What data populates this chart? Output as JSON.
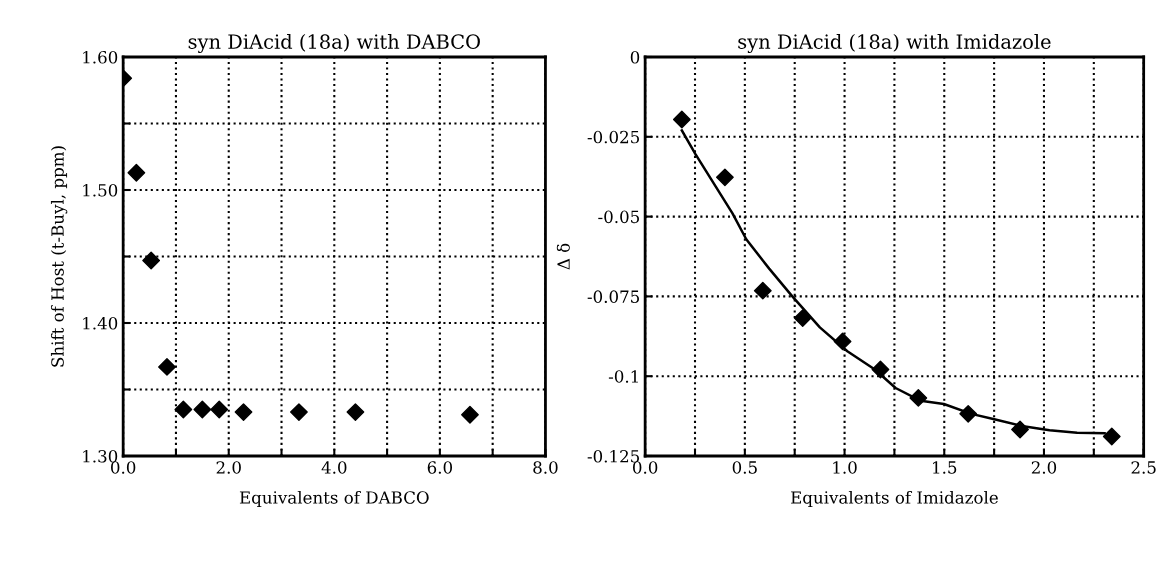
{
  "chart_data": [
    {
      "type": "scatter",
      "title": "syn DiAcid (18a) with DABCO",
      "xlabel": "Equivalents of DABCO",
      "ylabel": "Shift of Host (t-Buyl, ppm)",
      "marker": "diamond",
      "grid": true,
      "series": [
        {
          "color": "#000000",
          "x": [
            0,
            0.25,
            0.53,
            0.83,
            1.14,
            1.5,
            1.82,
            2.28,
            3.33,
            4.4,
            6.57
          ],
          "values": [
            1.584,
            1.513,
            1.447,
            1.367,
            1.335,
            1.335,
            1.335,
            1.333,
            1.333,
            1.333,
            1.331
          ]
        }
      ],
      "xlim": [
        0,
        8
      ],
      "xticks": [
        {
          "value": 0,
          "label": "0.0"
        },
        {
          "value": 1,
          "label": null
        },
        {
          "value": 2,
          "label": "2.0"
        },
        {
          "value": 3,
          "label": null
        },
        {
          "value": 4,
          "label": "4.0"
        },
        {
          "value": 5,
          "label": null
        },
        {
          "value": 6,
          "label": "6.0"
        },
        {
          "value": 7,
          "label": null
        },
        {
          "value": 8,
          "label": "8.0"
        }
      ],
      "ylim": [
        1.3,
        1.6
      ],
      "yticks": [
        {
          "value": 1.3,
          "label": "1.30"
        },
        {
          "value": 1.35,
          "label": null
        },
        {
          "value": 1.4,
          "label": "1.40"
        },
        {
          "value": 1.45,
          "label": null
        },
        {
          "value": 1.5,
          "label": "1.50"
        },
        {
          "value": 1.55,
          "label": null
        },
        {
          "value": 1.6,
          "label": "1.60"
        }
      ]
    },
    {
      "type": "scatter",
      "title": "syn DiAcid (18a) with Imidazole",
      "xlabel": "Equivalents of Imidazole",
      "ylabel": "Δ δ",
      "marker": "diamond",
      "grid": true,
      "series": [
        {
          "color": "#000000",
          "x": [
            0.184,
            0.4,
            0.59,
            0.79,
            0.99,
            1.18,
            1.37,
            1.62,
            1.88,
            2.34
          ],
          "values": [
            -0.0196,
            -0.0377,
            -0.0732,
            -0.0818,
            -0.0891,
            -0.0979,
            -0.1068,
            -0.1118,
            -0.1167,
            -0.1189
          ]
        },
        {
          "type": "line",
          "color": "#000000",
          "marker": "none",
          "x": [
            0.184,
            0.253,
            0.369,
            0.438,
            0.507,
            0.622,
            0.737,
            0.876,
            1.014,
            1.152,
            1.256,
            1.382,
            1.498,
            1.636,
            1.751,
            1.889,
            2.028,
            2.166,
            2.304
          ],
          "values": [
            -0.023,
            -0.0305,
            -0.0421,
            -0.049,
            -0.0571,
            -0.0663,
            -0.0749,
            -0.0847,
            -0.0922,
            -0.0979,
            -0.1037,
            -0.1077,
            -0.1087,
            -0.1118,
            -0.1135,
            -0.1156,
            -0.1169,
            -0.1177,
            -0.1179
          ]
        }
      ],
      "xlim": [
        0,
        2.5
      ],
      "xticks": [
        {
          "value": 0,
          "label": "0.0"
        },
        {
          "value": 0.25,
          "label": null
        },
        {
          "value": 0.5,
          "label": "0.5"
        },
        {
          "value": 0.75,
          "label": null
        },
        {
          "value": 1,
          "label": "1.0"
        },
        {
          "value": 1.25,
          "label": null
        },
        {
          "value": 1.5,
          "label": "1.5"
        },
        {
          "value": 1.75,
          "label": null
        },
        {
          "value": 2,
          "label": "2.0"
        },
        {
          "value": 2.25,
          "label": null
        },
        {
          "value": 2.5,
          "label": "2.5"
        }
      ],
      "ylim": [
        -0.125,
        0
      ],
      "yticks": [
        {
          "value": -0.125,
          "label": "-0.125"
        },
        {
          "value": -0.1,
          "label": "-0.1"
        },
        {
          "value": -0.075,
          "label": "-0.075"
        },
        {
          "value": -0.05,
          "label": "-0.05"
        },
        {
          "value": -0.025,
          "label": "-0.025"
        },
        {
          "value": 0,
          "label": "0"
        }
      ]
    }
  ]
}
